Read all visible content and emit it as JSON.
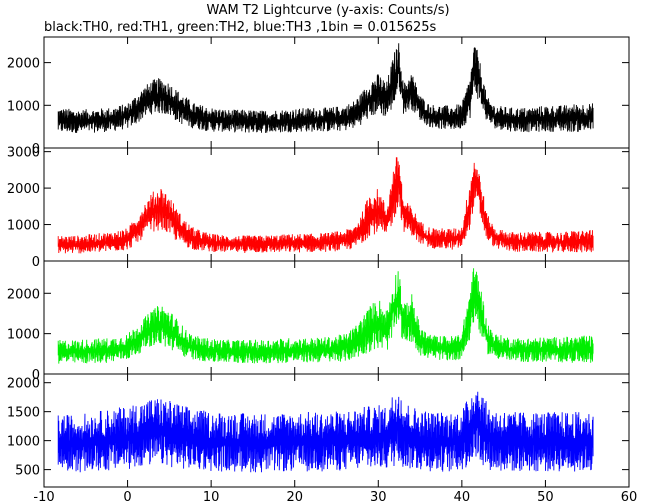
{
  "chart_data": {
    "type": "line",
    "title": "WAM T2 Lightcurve (y-axis: Counts/s)",
    "subtitle": "black:TH0, red:TH1, green:TH2, blue:TH3 ,1bin = 0.015625s",
    "xlim": [
      -10,
      60
    ],
    "x_ticks": [
      -10,
      0,
      10,
      20,
      30,
      40,
      50,
      60
    ],
    "x_tick_labels": [
      "-10",
      "0",
      "10",
      "20",
      "30",
      "40",
      "50",
      "60"
    ],
    "grid": false,
    "panels": [
      {
        "name": "TH0",
        "color": "#000000",
        "ylim": [
          0,
          2600
        ],
        "y_ticks": [
          0,
          1000,
          2000
        ],
        "y_tick_labels": [
          "0",
          "1000",
          "2000"
        ],
        "envelope": [
          [
            -8.3,
            350,
            950
          ],
          [
            -6,
            350,
            900
          ],
          [
            -4,
            360,
            920
          ],
          [
            -2,
            380,
            950
          ],
          [
            0,
            450,
            1050
          ],
          [
            1,
            550,
            1250
          ],
          [
            2,
            700,
            1450
          ],
          [
            3,
            800,
            1600
          ],
          [
            4,
            800,
            1650
          ],
          [
            5,
            750,
            1550
          ],
          [
            6,
            600,
            1350
          ],
          [
            7,
            500,
            1200
          ],
          [
            8,
            450,
            1050
          ],
          [
            10,
            380,
            950
          ],
          [
            12,
            370,
            900
          ],
          [
            14,
            350,
            900
          ],
          [
            16,
            350,
            880
          ],
          [
            18,
            350,
            900
          ],
          [
            20,
            370,
            920
          ],
          [
            22,
            380,
            950
          ],
          [
            24,
            380,
            950
          ],
          [
            26,
            400,
            1000
          ],
          [
            27,
            450,
            1100
          ],
          [
            28,
            550,
            1300
          ],
          [
            29,
            700,
            1600
          ],
          [
            30,
            800,
            1750
          ],
          [
            31,
            700,
            1550
          ],
          [
            32,
            1000,
            2300
          ],
          [
            32.5,
            1400,
            2500
          ],
          [
            33,
            800,
            1500
          ],
          [
            34,
            900,
            1800
          ],
          [
            35,
            650,
            1250
          ],
          [
            36,
            500,
            1050
          ],
          [
            37,
            450,
            1000
          ],
          [
            38,
            430,
            1000
          ],
          [
            39,
            420,
            1000
          ],
          [
            40,
            450,
            1050
          ],
          [
            41,
            700,
            1700
          ],
          [
            41.5,
            1300,
            2500
          ],
          [
            42,
            1100,
            2200
          ],
          [
            43,
            600,
            1200
          ],
          [
            44,
            450,
            1000
          ],
          [
            46,
            380,
            950
          ],
          [
            48,
            370,
            950
          ],
          [
            50,
            380,
            1000
          ],
          [
            52,
            380,
            1000
          ],
          [
            54,
            370,
            1050
          ],
          [
            55.7,
            380,
            1050
          ]
        ]
      },
      {
        "name": "TH1",
        "color": "#ff0000",
        "ylim": [
          0,
          3100
        ],
        "y_ticks": [
          0,
          1000,
          2000,
          3000
        ],
        "y_tick_labels": [
          "0",
          "1000",
          "2000",
          "3000"
        ],
        "envelope": [
          [
            -8.3,
            200,
            700
          ],
          [
            -6,
            200,
            700
          ],
          [
            -4,
            220,
            750
          ],
          [
            -2,
            250,
            800
          ],
          [
            0,
            300,
            900
          ],
          [
            1,
            450,
            1200
          ],
          [
            2,
            650,
            1600
          ],
          [
            3,
            800,
            1900
          ],
          [
            4,
            850,
            2050
          ],
          [
            5,
            700,
            1800
          ],
          [
            6,
            500,
            1400
          ],
          [
            7,
            380,
            1100
          ],
          [
            8,
            300,
            900
          ],
          [
            10,
            250,
            750
          ],
          [
            12,
            230,
            700
          ],
          [
            14,
            220,
            700
          ],
          [
            16,
            220,
            700
          ],
          [
            18,
            230,
            720
          ],
          [
            20,
            230,
            750
          ],
          [
            22,
            240,
            750
          ],
          [
            24,
            250,
            780
          ],
          [
            26,
            280,
            850
          ],
          [
            27,
            330,
            950
          ],
          [
            28,
            450,
            1300
          ],
          [
            29,
            700,
            1900
          ],
          [
            30,
            750,
            2000
          ],
          [
            31,
            600,
            1500
          ],
          [
            32,
            1200,
            2800
          ],
          [
            32.5,
            1500,
            3000
          ],
          [
            33,
            800,
            1700
          ],
          [
            34,
            700,
            1500
          ],
          [
            35,
            450,
            1100
          ],
          [
            36,
            350,
            950
          ],
          [
            37,
            330,
            900
          ],
          [
            38,
            320,
            900
          ],
          [
            39,
            300,
            900
          ],
          [
            40,
            350,
            950
          ],
          [
            41,
            900,
            2300
          ],
          [
            41.5,
            1600,
            2900
          ],
          [
            42,
            1300,
            2600
          ],
          [
            43,
            550,
            1300
          ],
          [
            44,
            350,
            900
          ],
          [
            46,
            250,
            800
          ],
          [
            48,
            240,
            800
          ],
          [
            50,
            240,
            800
          ],
          [
            52,
            230,
            800
          ],
          [
            54,
            230,
            850
          ],
          [
            55.7,
            230,
            850
          ]
        ]
      },
      {
        "name": "TH2",
        "color": "#00ee00",
        "ylim": [
          0,
          2800
        ],
        "y_ticks": [
          0,
          1000,
          2000
        ],
        "y_tick_labels": [
          "0",
          "1000",
          "2000"
        ],
        "envelope": [
          [
            -8.3,
            250,
            850
          ],
          [
            -6,
            250,
            850
          ],
          [
            -4,
            260,
            880
          ],
          [
            -2,
            280,
            900
          ],
          [
            0,
            350,
            1000
          ],
          [
            1,
            450,
            1200
          ],
          [
            2,
            600,
            1400
          ],
          [
            3,
            700,
            1600
          ],
          [
            4,
            700,
            1750
          ],
          [
            5,
            600,
            1600
          ],
          [
            6,
            500,
            1350
          ],
          [
            7,
            400,
            1100
          ],
          [
            8,
            350,
            950
          ],
          [
            10,
            280,
            880
          ],
          [
            12,
            270,
            850
          ],
          [
            14,
            260,
            850
          ],
          [
            16,
            260,
            850
          ],
          [
            18,
            270,
            880
          ],
          [
            20,
            280,
            900
          ],
          [
            22,
            280,
            900
          ],
          [
            24,
            290,
            920
          ],
          [
            26,
            310,
            1000
          ],
          [
            27,
            350,
            1150
          ],
          [
            28,
            450,
            1400
          ],
          [
            29,
            550,
            1700
          ],
          [
            30,
            600,
            1900
          ],
          [
            31,
            550,
            1600
          ],
          [
            32,
            1000,
            2500
          ],
          [
            32.5,
            1200,
            2700
          ],
          [
            33,
            700,
            1700
          ],
          [
            34,
            800,
            2000
          ],
          [
            35,
            450,
            1200
          ],
          [
            36,
            380,
            1000
          ],
          [
            37,
            350,
            950
          ],
          [
            38,
            330,
            950
          ],
          [
            39,
            320,
            950
          ],
          [
            40,
            380,
            1050
          ],
          [
            41,
            800,
            2200
          ],
          [
            41.5,
            1300,
            2750
          ],
          [
            42,
            1100,
            2500
          ],
          [
            43,
            500,
            1300
          ],
          [
            44,
            380,
            1000
          ],
          [
            46,
            300,
            900
          ],
          [
            48,
            290,
            900
          ],
          [
            50,
            290,
            920
          ],
          [
            52,
            280,
            920
          ],
          [
            54,
            280,
            950
          ],
          [
            55.7,
            280,
            950
          ]
        ]
      },
      {
        "name": "TH3",
        "color": "#0000ff",
        "ylim": [
          200,
          2150
        ],
        "y_ticks": [
          500,
          1000,
          1500,
          2000
        ],
        "y_tick_labels": [
          "500",
          "1000",
          "1500",
          "2000"
        ],
        "envelope": [
          [
            -8.3,
            450,
            1450
          ],
          [
            -6,
            450,
            1450
          ],
          [
            -4,
            460,
            1500
          ],
          [
            -2,
            470,
            1550
          ],
          [
            0,
            500,
            1600
          ],
          [
            1,
            520,
            1650
          ],
          [
            2,
            550,
            1700
          ],
          [
            3,
            560,
            1750
          ],
          [
            4,
            560,
            1750
          ],
          [
            5,
            550,
            1700
          ],
          [
            6,
            520,
            1650
          ],
          [
            7,
            500,
            1600
          ],
          [
            8,
            490,
            1550
          ],
          [
            10,
            470,
            1500
          ],
          [
            12,
            460,
            1500
          ],
          [
            14,
            450,
            1480
          ],
          [
            16,
            450,
            1480
          ],
          [
            18,
            460,
            1480
          ],
          [
            20,
            460,
            1500
          ],
          [
            22,
            460,
            1500
          ],
          [
            24,
            470,
            1500
          ],
          [
            26,
            480,
            1520
          ],
          [
            27,
            490,
            1550
          ],
          [
            28,
            500,
            1580
          ],
          [
            29,
            500,
            1600
          ],
          [
            30,
            510,
            1620
          ],
          [
            31,
            500,
            1600
          ],
          [
            32,
            550,
            1900
          ],
          [
            32.5,
            650,
            2000
          ],
          [
            33,
            520,
            1700
          ],
          [
            34,
            500,
            1600
          ],
          [
            35,
            480,
            1550
          ],
          [
            36,
            470,
            1520
          ],
          [
            37,
            460,
            1500
          ],
          [
            38,
            460,
            1500
          ],
          [
            39,
            460,
            1500
          ],
          [
            40,
            480,
            1550
          ],
          [
            41,
            560,
            1800
          ],
          [
            41.5,
            700,
            2050
          ],
          [
            42,
            650,
            2000
          ],
          [
            43,
            500,
            1650
          ],
          [
            44,
            470,
            1550
          ],
          [
            46,
            460,
            1500
          ],
          [
            48,
            460,
            1500
          ],
          [
            50,
            460,
            1500
          ],
          [
            52,
            460,
            1500
          ],
          [
            54,
            460,
            1500
          ],
          [
            55.7,
            460,
            1500
          ]
        ]
      }
    ]
  }
}
